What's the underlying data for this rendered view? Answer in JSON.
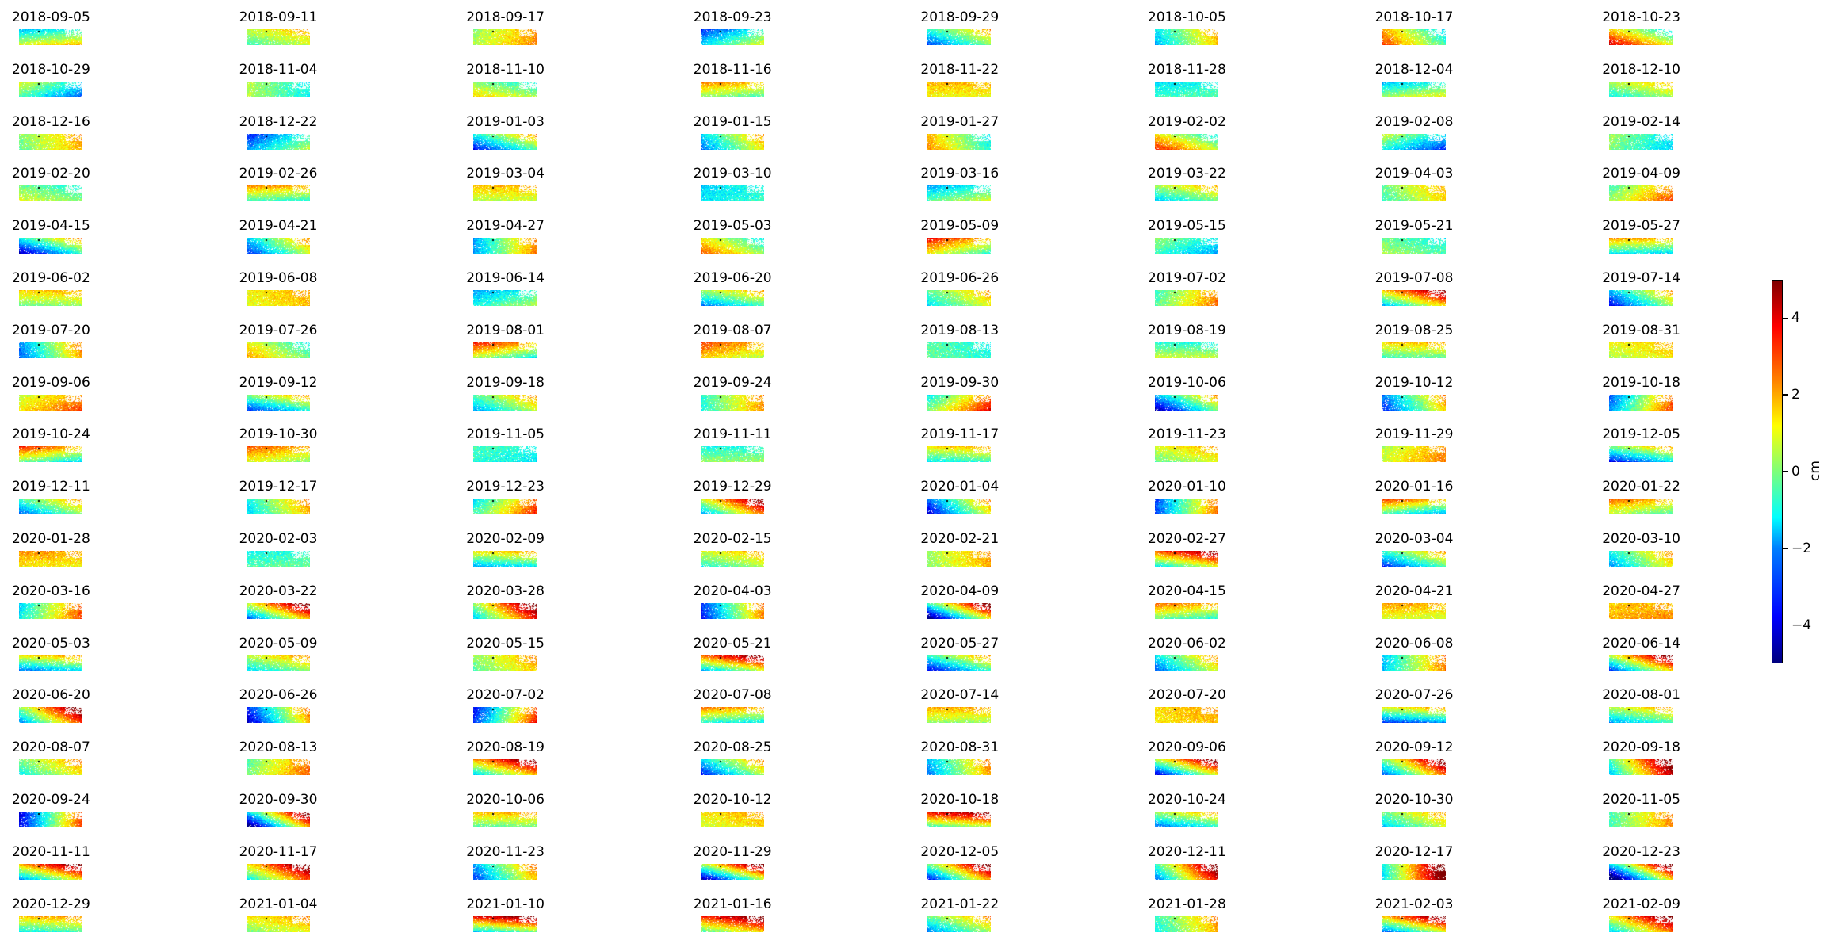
{
  "chart_data": {
    "type": "heatmap",
    "grid": false,
    "panel_titles": [
      "2018-09-05",
      "2018-09-11",
      "2018-09-17",
      "2018-09-23",
      "2018-09-29",
      "2018-10-05",
      "2018-10-17",
      "2018-10-23",
      "2018-10-29",
      "2018-11-04",
      "2018-11-10",
      "2018-11-16",
      "2018-11-22",
      "2018-11-28",
      "2018-12-04",
      "2018-12-10",
      "2018-12-16",
      "2018-12-22",
      "2019-01-03",
      "2019-01-15",
      "2019-01-27",
      "2019-02-02",
      "2019-02-08",
      "2019-02-14",
      "2019-02-20",
      "2019-02-26",
      "2019-03-04",
      "2019-03-10",
      "2019-03-16",
      "2019-03-22",
      "2019-04-03",
      "2019-04-09",
      "2019-04-15",
      "2019-04-21",
      "2019-04-27",
      "2019-05-03",
      "2019-05-09",
      "2019-05-15",
      "2019-05-21",
      "2019-05-27",
      "2019-06-02",
      "2019-06-08",
      "2019-06-14",
      "2019-06-20",
      "2019-06-26",
      "2019-07-02",
      "2019-07-08",
      "2019-07-14",
      "2019-07-20",
      "2019-07-26",
      "2019-08-01",
      "2019-08-07",
      "2019-08-13",
      "2019-08-19",
      "2019-08-25",
      "2019-08-31",
      "2019-09-06",
      "2019-09-12",
      "2019-09-18",
      "2019-09-24",
      "2019-09-30",
      "2019-10-06",
      "2019-10-12",
      "2019-10-18",
      "2019-10-24",
      "2019-10-30",
      "2019-11-05",
      "2019-11-11",
      "2019-11-17",
      "2019-11-23",
      "2019-11-29",
      "2019-12-05",
      "2019-12-11",
      "2019-12-17",
      "2019-12-23",
      "2019-12-29",
      "2020-01-04",
      "2020-01-10",
      "2020-01-16",
      "2020-01-22",
      "2020-01-28",
      "2020-02-03",
      "2020-02-09",
      "2020-02-15",
      "2020-02-21",
      "2020-02-27",
      "2020-03-04",
      "2020-03-10",
      "2020-03-16",
      "2020-03-22",
      "2020-03-28",
      "2020-04-03",
      "2020-04-09",
      "2020-04-15",
      "2020-04-21",
      "2020-04-27",
      "2020-05-03",
      "2020-05-09",
      "2020-05-15",
      "2020-05-21",
      "2020-05-27",
      "2020-06-02",
      "2020-06-08",
      "2020-06-14",
      "2020-06-20",
      "2020-06-26",
      "2020-07-02",
      "2020-07-08",
      "2020-07-14",
      "2020-07-20",
      "2020-07-26",
      "2020-08-01",
      "2020-08-07",
      "2020-08-13",
      "2020-08-19",
      "2020-08-25",
      "2020-08-31",
      "2020-09-06",
      "2020-09-12",
      "2020-09-18",
      "2020-09-24",
      "2020-09-30",
      "2020-10-06",
      "2020-10-12",
      "2020-10-18",
      "2020-10-24",
      "2020-10-30",
      "2020-11-05",
      "2020-11-11",
      "2020-11-17",
      "2020-11-23",
      "2020-11-29",
      "2020-12-05",
      "2020-12-11",
      "2020-12-17",
      "2020-12-23",
      "2020-12-29",
      "2021-01-04",
      "2021-01-10",
      "2021-01-16",
      "2021-01-22",
      "2021-01-28",
      "2021-02-03",
      "2021-02-09"
    ],
    "colorbar": {
      "label": "cm",
      "range": [
        -5,
        5
      ],
      "ticks": [
        -4,
        -2,
        0,
        2,
        4
      ],
      "tick_labels": [
        "−4",
        "−2",
        "0",
        "2",
        "4"
      ],
      "colormap": "jet",
      "position": "right"
    }
  }
}
